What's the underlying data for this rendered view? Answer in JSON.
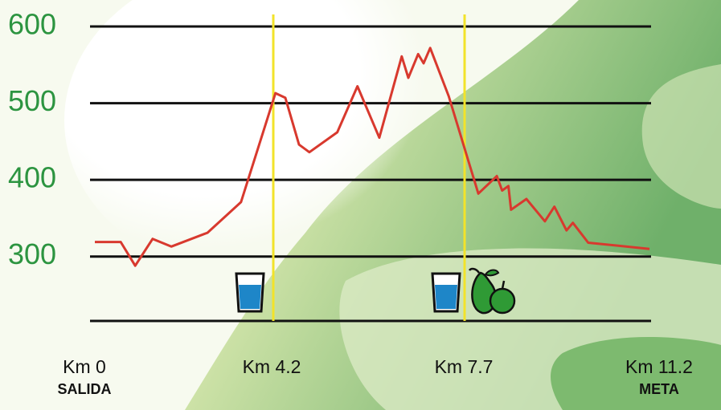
{
  "chart_data": {
    "type": "line",
    "x": [
      0,
      0.61,
      0.95,
      1.36,
      1.8,
      2.65,
      3.44,
      4.24,
      4.42,
      4.67,
      4.86,
      5.37,
      5.74,
      6.14,
      6.55,
      6.67,
      6.85,
      6.95,
      7.07,
      7.41,
      7.7,
      7.96,
      8.31,
      8.41,
      8.53,
      8.58,
      8.87,
      9.22,
      9.4,
      9.63,
      9.75,
      10.04,
      11.2
    ],
    "series": [
      {
        "color": "#d8392e",
        "values": [
          319,
          319,
          288,
          323,
          313,
          331,
          371,
          513,
          507,
          446,
          436,
          462,
          522,
          455,
          561,
          533,
          564,
          552,
          572,
          509,
          441,
          382,
          405,
          386,
          392,
          361,
          375,
          346,
          365,
          334,
          344,
          318,
          310
        ]
      }
    ],
    "xlim": [
      0,
      11.2
    ],
    "xticks": [
      {
        "value": 0,
        "label": "Km 0"
      },
      {
        "value": 4.2,
        "label": "Km 4.2"
      },
      {
        "value": 7.7,
        "label": "Km 7.7"
      },
      {
        "value": 11.2,
        "label": "Km 11.2"
      }
    ],
    "ylim": [
      216,
      600
    ],
    "yticks": [
      300,
      400,
      500,
      600
    ],
    "grid": true,
    "annotations": [
      "SALIDA",
      "META"
    ]
  }
}
